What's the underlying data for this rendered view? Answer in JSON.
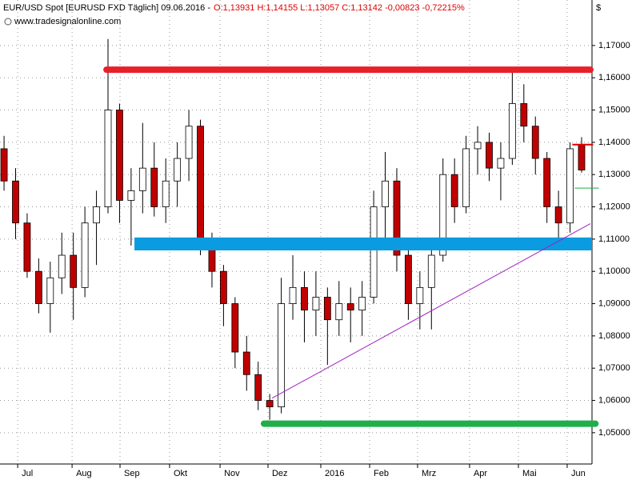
{
  "chart_data": {
    "type": "candlestick",
    "title": "EUR/USD Spot [EURUSD FXD  Täglich] 09.06.2016 -",
    "quote": "O:1,13931 H:1,14155 L:1,13057 C:1,13142 -0,00823 -0,72215%",
    "source": "www.tradesignalonline.com",
    "currency_label": "$",
    "categories": [
      null,
      null,
      null,
      null,
      null,
      null,
      null,
      null,
      null,
      null,
      null,
      null,
      null,
      null,
      null,
      null,
      null,
      null,
      null,
      null,
      null,
      null,
      null,
      null,
      null,
      null,
      null,
      null,
      null,
      null,
      null,
      null,
      null,
      null,
      null,
      null,
      null,
      null,
      null,
      null,
      null,
      null,
      null,
      null,
      null,
      null,
      null,
      null,
      null,
      null,
      null
    ],
    "open": [
      1.138,
      1.128,
      1.115,
      1.1,
      1.09,
      1.098,
      1.105,
      1.095,
      1.115,
      1.12,
      1.15,
      1.122,
      1.125,
      1.132,
      1.12,
      1.128,
      1.135,
      1.145,
      1.11,
      1.1,
      1.09,
      1.075,
      1.068,
      1.06,
      1.058,
      1.09,
      1.095,
      1.088,
      1.092,
      1.085,
      1.09,
      1.088,
      1.092,
      1.12,
      1.128,
      1.105,
      1.09,
      1.095,
      1.105,
      1.13,
      1.12,
      1.138,
      1.14,
      1.132,
      1.135,
      1.152,
      1.145,
      1.135,
      1.12,
      1.115,
      1.1393
    ],
    "high": [
      1.142,
      1.132,
      1.118,
      1.104,
      1.103,
      1.112,
      1.112,
      1.12,
      1.125,
      1.172,
      1.152,
      1.132,
      1.146,
      1.14,
      1.135,
      1.14,
      1.15,
      1.147,
      1.112,
      1.102,
      1.092,
      1.08,
      1.072,
      1.062,
      1.098,
      1.105,
      1.1,
      1.1,
      1.095,
      1.097,
      1.095,
      1.097,
      1.125,
      1.137,
      1.132,
      1.11,
      1.1,
      1.11,
      1.135,
      1.135,
      1.142,
      1.145,
      1.143,
      1.14,
      1.162,
      1.158,
      1.148,
      1.137,
      1.125,
      1.14,
      1.1416
    ],
    "low": [
      1.125,
      1.11,
      1.098,
      1.087,
      1.081,
      1.093,
      1.085,
      1.092,
      1.102,
      1.118,
      1.115,
      1.108,
      1.118,
      1.117,
      1.115,
      1.12,
      1.128,
      1.105,
      1.095,
      1.083,
      1.07,
      1.063,
      1.057,
      1.054,
      1.056,
      1.085,
      1.078,
      1.08,
      1.071,
      1.08,
      1.078,
      1.08,
      1.09,
      1.11,
      1.1,
      1.085,
      1.082,
      1.082,
      1.103,
      1.115,
      1.118,
      1.13,
      1.128,
      1.122,
      1.133,
      1.14,
      1.13,
      1.115,
      1.11,
      1.112,
      1.1306
    ],
    "close": [
      1.128,
      1.115,
      1.1,
      1.09,
      1.098,
      1.105,
      1.095,
      1.115,
      1.12,
      1.15,
      1.122,
      1.125,
      1.132,
      1.12,
      1.128,
      1.135,
      1.145,
      1.11,
      1.1,
      1.09,
      1.075,
      1.068,
      1.06,
      1.058,
      1.09,
      1.095,
      1.088,
      1.092,
      1.085,
      1.09,
      1.088,
      1.092,
      1.12,
      1.128,
      1.105,
      1.09,
      1.095,
      1.105,
      1.13,
      1.12,
      1.138,
      1.14,
      1.132,
      1.135,
      1.152,
      1.145,
      1.135,
      1.12,
      1.115,
      1.138,
      1.1314
    ],
    "up_color": "#ffffff",
    "down_color": "#c00000",
    "ylim": [
      1.0403,
      1.1841
    ],
    "yticks": [
      {
        "value": 1.05,
        "label": "1,05000"
      },
      {
        "value": 1.06,
        "label": "1,06000"
      },
      {
        "value": 1.07,
        "label": "1,07000"
      },
      {
        "value": 1.08,
        "label": "1,08000"
      },
      {
        "value": 1.09,
        "label": "1,09000"
      },
      {
        "value": 1.1,
        "label": "1,10000"
      },
      {
        "value": 1.11,
        "label": "1,11000"
      },
      {
        "value": 1.12,
        "label": "1,12000"
      },
      {
        "value": 1.13,
        "label": "1,13000"
      },
      {
        "value": 1.14,
        "label": "1,14000"
      },
      {
        "value": 1.15,
        "label": "1,15000"
      },
      {
        "value": 1.16,
        "label": "1,16000"
      },
      {
        "value": 1.17,
        "label": "1,17000"
      }
    ],
    "xlim": [
      -0.35,
      50.9
    ],
    "xticks": [
      {
        "value": 1.18,
        "label": "Jul"
      },
      {
        "value": 5.89,
        "label": "Aug"
      },
      {
        "value": 10.04,
        "label": "Sep"
      },
      {
        "value": 14.33,
        "label": "Okt"
      },
      {
        "value": 18.7,
        "label": "Nov"
      },
      {
        "value": 22.85,
        "label": "Dez"
      },
      {
        "value": 27.42,
        "label": "2016"
      },
      {
        "value": 31.65,
        "label": "Feb"
      },
      {
        "value": 35.8,
        "label": "Mrz"
      },
      {
        "value": 40.3,
        "label": "Apr"
      },
      {
        "value": 44.53,
        "label": "Mai"
      },
      {
        "value": 48.75,
        "label": "Jun"
      }
    ],
    "grid": true,
    "lines": [
      {
        "type": "line",
        "color": "#e8202a",
        "width": 8,
        "x": [
          8.87,
          50.76
        ],
        "y": [
          1.1625,
          1.1625
        ]
      },
      {
        "type": "band",
        "color": "#0a9be0",
        "x": [
          11.29,
          50.9
        ],
        "y": [
          1.1065,
          1.1105
        ]
      },
      {
        "type": "line",
        "color": "#1fae4a",
        "width": 8,
        "x": [
          22.5,
          51.2
        ],
        "y": [
          1.0528,
          1.0528
        ]
      },
      {
        "type": "line",
        "color": "#a020c0",
        "width": 1,
        "x": [
          23.2,
          50.76
        ],
        "y": [
          1.0607,
          1.1148
        ]
      },
      {
        "type": "line",
        "color": "#e00000",
        "width": 2,
        "x": [
          49.2,
          51.0
        ],
        "y": [
          1.1393,
          1.1393
        ]
      },
      {
        "type": "line",
        "color": "#1fae4a",
        "width": 1,
        "x": [
          49.4,
          51.5
        ],
        "y": [
          1.1258,
          1.1258
        ]
      }
    ]
  }
}
